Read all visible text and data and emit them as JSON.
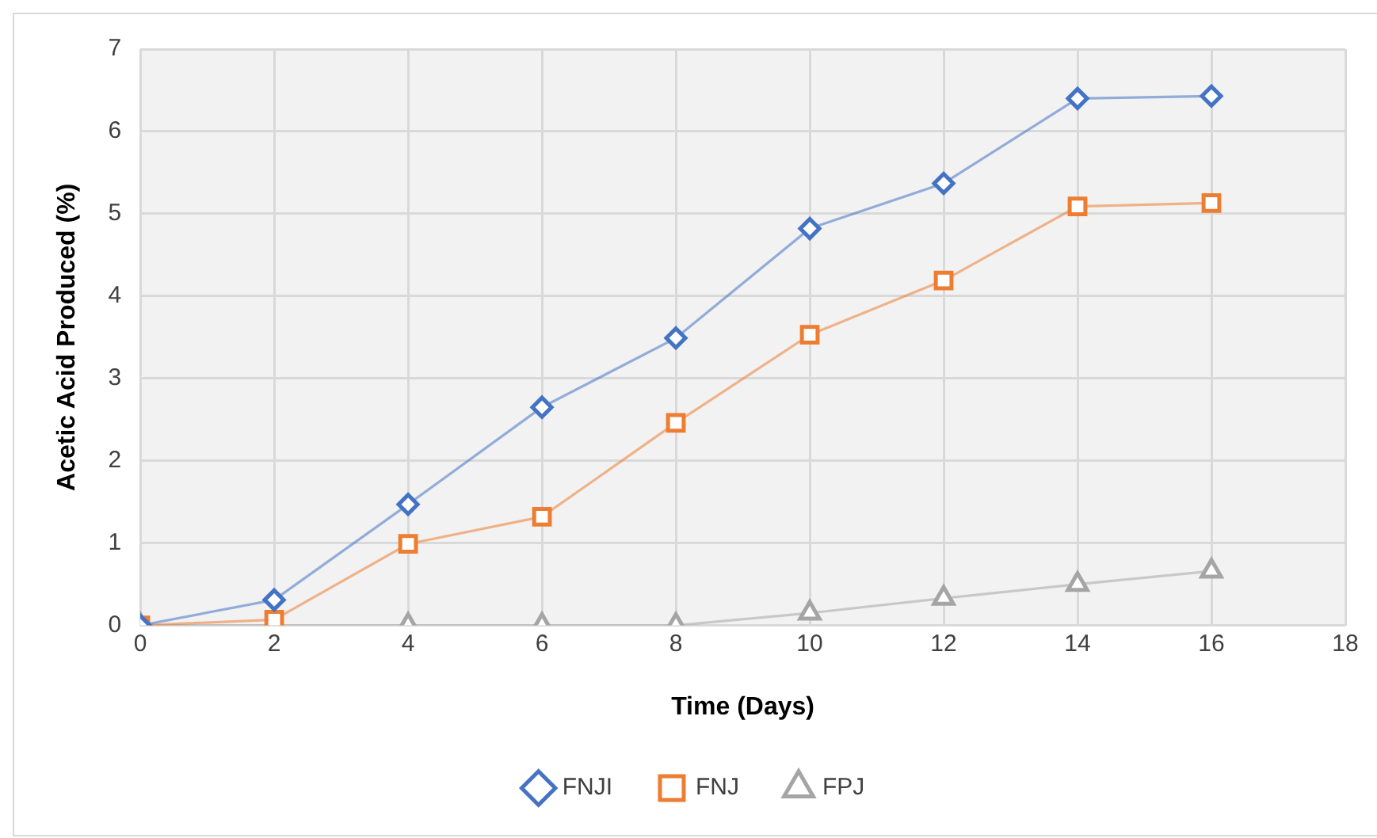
{
  "chart_data": {
    "type": "line",
    "xlabel": "Time (Days)",
    "ylabel": "Acetic Acid Produced (%)",
    "x": [
      0,
      2,
      4,
      6,
      8,
      10,
      12,
      14,
      16
    ],
    "series": [
      {
        "name": "FNJI",
        "color": "#4472c4",
        "marker": "diamond",
        "values": [
          0,
          0.31,
          1.47,
          2.65,
          3.49,
          4.82,
          5.37,
          6.4,
          6.43
        ]
      },
      {
        "name": "FNJ",
        "color": "#ed7d31",
        "marker": "square",
        "values": [
          0,
          0.07,
          0.99,
          1.32,
          2.46,
          3.53,
          4.19,
          5.09,
          5.13
        ]
      },
      {
        "name": "FPJ",
        "color": "#a5a5a5",
        "marker": "triangle",
        "values": [
          0,
          0,
          0,
          0,
          0,
          0.15,
          0.33,
          0.5,
          0.66
        ]
      }
    ],
    "xlim": [
      0,
      18
    ],
    "xticks": [
      0,
      2,
      4,
      6,
      8,
      10,
      12,
      14,
      16,
      18
    ],
    "ylim": [
      0,
      7
    ],
    "yticks": [
      0,
      1,
      2,
      3,
      4,
      5,
      6,
      7
    ],
    "grid": true,
    "legend": "bottom",
    "line_style": "solid"
  }
}
